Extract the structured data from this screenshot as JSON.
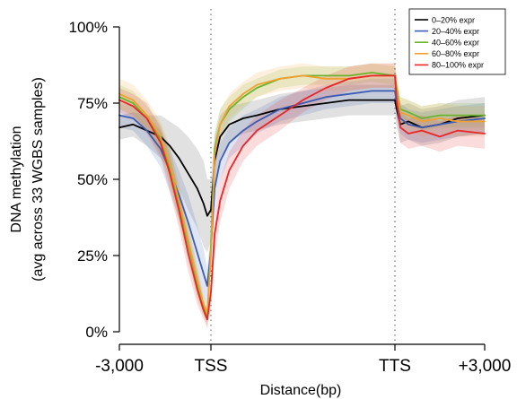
{
  "chart_data": {
    "type": "line",
    "title": "",
    "xlabel": "Distance(bp)",
    "ylabel": [
      "DNA methylation",
      "(avg across 33 WGBS samples)"
    ],
    "x_ticks": [
      "-3,000",
      "TSS",
      "TTS",
      "+3,000"
    ],
    "y_ticks": [
      "0%",
      "25%",
      "50%",
      "75%",
      "100%"
    ],
    "ylim": [
      0,
      100
    ],
    "x_domain": [
      0,
      4
    ],
    "reference_lines_at": [
      "TSS",
      "TTS"
    ],
    "legend_position": "top-right",
    "x": [
      0,
      0.15,
      0.3,
      0.45,
      0.55,
      0.65,
      0.75,
      0.85,
      0.92,
      0.96,
      1.0,
      1.04,
      1.1,
      1.2,
      1.35,
      1.5,
      1.75,
      2.0,
      2.25,
      2.5,
      2.75,
      3.0,
      3.02,
      3.06,
      3.15,
      3.3,
      3.5,
      3.7,
      4.0
    ],
    "series": [
      {
        "name": "0–20% expr",
        "color": "#000000",
        "values": [
          67,
          68,
          66,
          64,
          61,
          57,
          52,
          47,
          42,
          38,
          40,
          56,
          64,
          68,
          70,
          71,
          73,
          74,
          75,
          76,
          76,
          76,
          73,
          68,
          69,
          67,
          68,
          70,
          71
        ],
        "band": [
          4,
          4,
          5,
          7,
          8,
          10,
          12,
          13,
          14,
          12,
          10,
          8,
          7,
          6,
          5,
          5,
          5,
          5,
          5,
          5,
          5,
          5,
          6,
          6,
          6,
          6,
          6,
          6,
          6
        ]
      },
      {
        "name": "20–40% expr",
        "color": "#3b5bb5",
        "values": [
          71,
          70,
          66,
          60,
          53,
          45,
          36,
          26,
          19,
          15,
          27,
          47,
          56,
          62,
          66,
          69,
          73,
          75,
          77,
          78,
          79,
          79,
          75,
          70,
          68,
          67,
          68,
          69,
          70
        ],
        "band": [
          4,
          4,
          5,
          6,
          7,
          8,
          9,
          9,
          8,
          6,
          6,
          7,
          6,
          5,
          5,
          4,
          4,
          4,
          4,
          4,
          4,
          4,
          5,
          5,
          5,
          5,
          5,
          5,
          5
        ]
      },
      {
        "name": "40–60% expr",
        "color": "#6ab42d",
        "values": [
          77,
          75,
          70,
          63,
          54,
          42,
          29,
          16,
          8,
          5,
          28,
          60,
          68,
          73,
          77,
          80,
          83,
          84,
          84,
          84,
          85,
          84,
          80,
          73,
          72,
          70,
          71,
          71,
          71
        ],
        "band": [
          4,
          4,
          4,
          5,
          6,
          6,
          6,
          5,
          3,
          3,
          4,
          6,
          5,
          4,
          4,
          3,
          3,
          3,
          3,
          3,
          3,
          3,
          4,
          4,
          4,
          4,
          4,
          4,
          4
        ]
      },
      {
        "name": "60–80% expr",
        "color": "#f0a030",
        "values": [
          78,
          76,
          71,
          64,
          55,
          43,
          30,
          17,
          9,
          6,
          25,
          58,
          68,
          74,
          78,
          81,
          83,
          84,
          83,
          83,
          84,
          84,
          79,
          72,
          71,
          69,
          70,
          69,
          69
        ],
        "band": [
          5,
          5,
          5,
          5,
          6,
          6,
          6,
          5,
          3,
          3,
          5,
          6,
          5,
          4,
          4,
          4,
          4,
          4,
          4,
          4,
          4,
          4,
          5,
          5,
          5,
          5,
          5,
          5,
          5
        ]
      },
      {
        "name": "80–100% expr",
        "color": "#e8262a",
        "values": [
          76,
          74,
          70,
          62,
          52,
          40,
          26,
          14,
          7,
          4,
          13,
          32,
          43,
          53,
          61,
          66,
          71,
          76,
          80,
          83,
          84,
          84,
          76,
          67,
          65,
          66,
          64,
          66,
          65
        ],
        "band": [
          4,
          4,
          5,
          5,
          6,
          6,
          6,
          5,
          3,
          3,
          5,
          7,
          7,
          6,
          5,
          5,
          5,
          4,
          4,
          4,
          4,
          4,
          5,
          5,
          5,
          5,
          5,
          5,
          5
        ]
      }
    ]
  }
}
